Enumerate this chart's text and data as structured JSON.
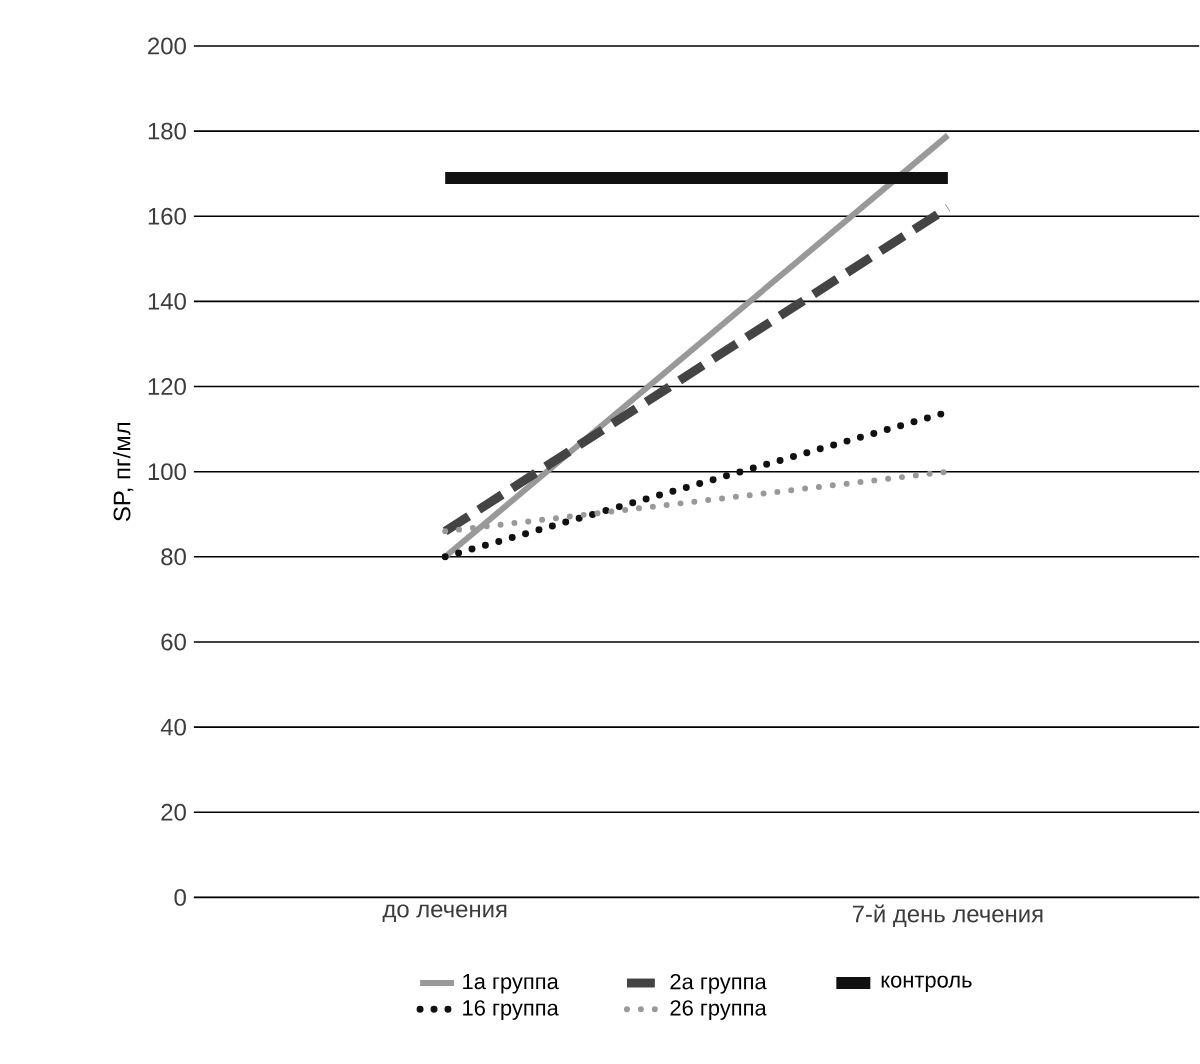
{
  "chart_data": {
    "type": "line",
    "ylabel": "SP, пг/мл",
    "categories": [
      "до лечения",
      "7-й день лечения"
    ],
    "series": [
      {
        "name": "1а группа",
        "color": "#999999",
        "line_style": "solid",
        "values": [
          80,
          179
        ]
      },
      {
        "name": "2а группа",
        "color": "#444444",
        "line_style": "dashed",
        "values": [
          86,
          162
        ]
      },
      {
        "name": "контроль",
        "color": "#111111",
        "line_style": "solid",
        "values": [
          169,
          169
        ]
      },
      {
        "name": "16 группа",
        "color": "#111111",
        "line_style": "dotted",
        "values": [
          80,
          114
        ]
      },
      {
        "name": "26 группа",
        "color": "#999999",
        "line_style": "dotted",
        "values": [
          86,
          100
        ]
      }
    ],
    "ylim": [
      0,
      200
    ],
    "yticks": [
      0,
      20,
      40,
      60,
      80,
      100,
      120,
      140,
      160,
      180,
      200
    ],
    "grid": "y",
    "legend": "bottom",
    "marker": "none"
  }
}
